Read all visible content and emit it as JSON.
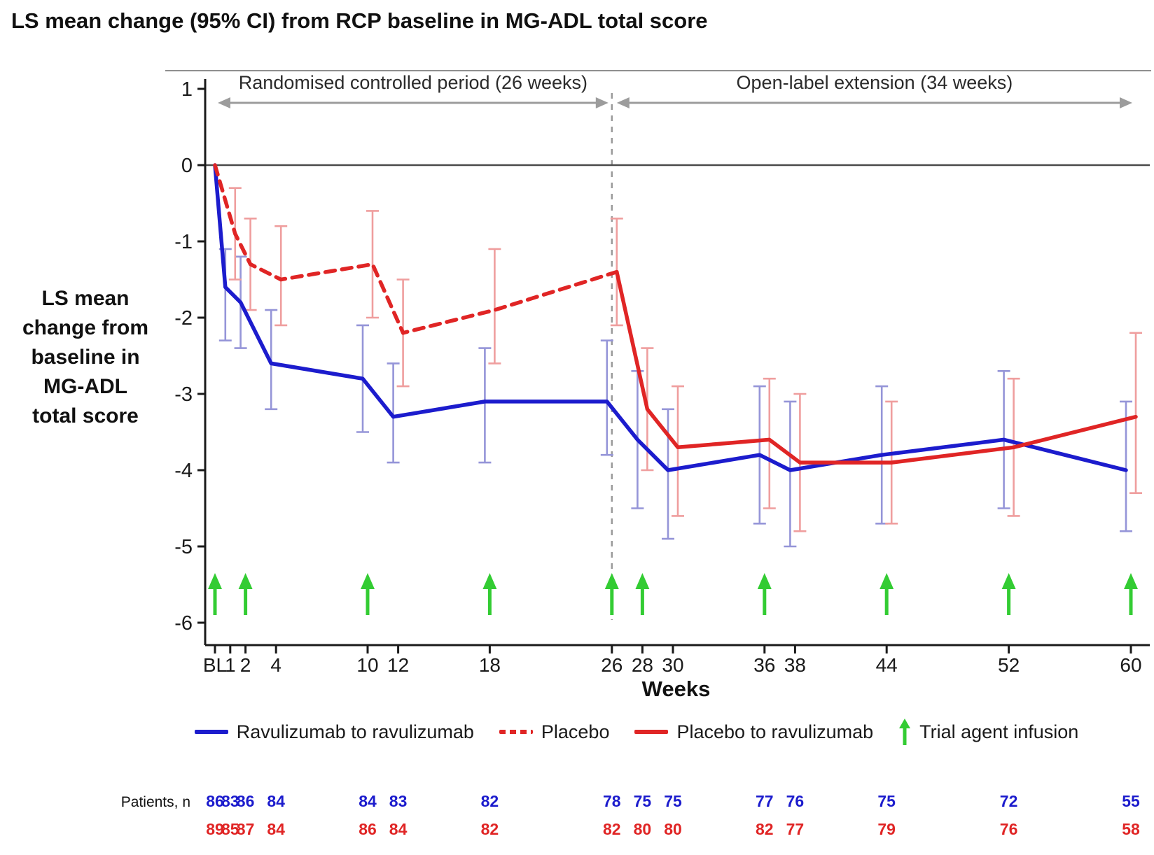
{
  "title": "LS mean change (95% CI) from RCP baseline in MG-ADL total score",
  "colors": {
    "blue": "#1c1ccd",
    "blue_light": "#9595d8",
    "red": "#e02525",
    "red_light": "#ef9e9e",
    "green": "#33cc33",
    "gray": "#9c9c9c",
    "axis": "#1a1a1a",
    "zero_line": "#4a4a4a"
  },
  "chart_data": {
    "type": "line",
    "title": "LS mean change (95% CI) from RCP baseline in MG-ADL total score",
    "xlabel": "Weeks",
    "ylabel": "LS mean change from baseline in MG-ADL total score",
    "ylabel_lines": [
      "LS mean",
      "change from",
      "baseline in",
      "MG-ADL",
      "total score"
    ],
    "ylim": [
      1,
      -6.6
    ],
    "y_ticks": [
      1,
      0,
      -1,
      -2,
      -3,
      -4,
      -5,
      -6
    ],
    "x_tick_labels": [
      "BL",
      "1",
      "2",
      "4",
      "10",
      "12",
      "18",
      "26",
      "28",
      "30",
      "36",
      "38",
      "44",
      "52",
      "60"
    ],
    "x_tick_weeks": [
      0,
      1,
      2,
      4,
      10,
      12,
      18,
      26,
      28,
      30,
      36,
      38,
      44,
      52,
      60
    ],
    "annotations": {
      "rcp_label": "Randomised controlled period (26 weeks)",
      "rcp_from_week": 0,
      "rcp_to_week": 26,
      "ole_label": "Open-label extension (34 weeks)",
      "ole_from_week": 26,
      "ole_to_week": 60,
      "divider_week": 26
    },
    "series": [
      {
        "name": "Ravulizumab to ravulizumab",
        "style": "solid",
        "color_key": "blue",
        "points": [
          {
            "week": 0,
            "value": 0
          },
          {
            "week": 1,
            "value": -1.6,
            "ci": [
              -1.1,
              -2.3
            ]
          },
          {
            "week": 2,
            "value": -1.8,
            "ci": [
              -1.2,
              -2.4
            ]
          },
          {
            "week": 4,
            "value": -2.6,
            "ci": [
              -1.9,
              -3.2
            ]
          },
          {
            "week": 10,
            "value": -2.8,
            "ci": [
              -2.1,
              -3.5
            ]
          },
          {
            "week": 12,
            "value": -3.3,
            "ci": [
              -2.6,
              -3.9
            ]
          },
          {
            "week": 18,
            "value": -3.1,
            "ci": [
              -2.4,
              -3.9
            ]
          },
          {
            "week": 26,
            "value": -3.1,
            "ci": [
              -2.3,
              -3.8
            ]
          },
          {
            "week": 28,
            "value": -3.6,
            "ci": [
              -2.7,
              -4.5
            ]
          },
          {
            "week": 30,
            "value": -4.0,
            "ci": [
              -3.2,
              -4.9
            ]
          },
          {
            "week": 36,
            "value": -3.8,
            "ci": [
              -2.9,
              -4.7
            ]
          },
          {
            "week": 38,
            "value": -4.0,
            "ci": [
              -3.1,
              -5.0
            ]
          },
          {
            "week": 44,
            "value": -3.8,
            "ci": [
              -2.9,
              -4.7
            ]
          },
          {
            "week": 52,
            "value": -3.6,
            "ci": [
              -2.7,
              -4.5
            ]
          },
          {
            "week": 60,
            "value": -4.0,
            "ci": [
              -3.1,
              -4.8
            ]
          }
        ]
      },
      {
        "name": "Placebo",
        "style": "dashed",
        "color_key": "red",
        "points": [
          {
            "week": 0,
            "value": 0
          },
          {
            "week": 1,
            "value": -0.9,
            "ci": [
              -0.3,
              -1.5
            ]
          },
          {
            "week": 2,
            "value": -1.3,
            "ci": [
              -0.7,
              -1.9
            ]
          },
          {
            "week": 4,
            "value": -1.5,
            "ci": [
              -0.8,
              -2.1
            ]
          },
          {
            "week": 10,
            "value": -1.3,
            "ci": [
              -0.6,
              -2.0
            ]
          },
          {
            "week": 12,
            "value": -2.2,
            "ci": [
              -1.5,
              -2.9
            ]
          },
          {
            "week": 18,
            "value": -1.9,
            "ci": [
              -1.1,
              -2.6
            ]
          },
          {
            "week": 26,
            "value": -1.4,
            "ci": [
              -0.7,
              -2.1
            ]
          }
        ]
      },
      {
        "name": "Placebo to ravulizumab",
        "style": "solid",
        "color_key": "red",
        "points": [
          {
            "week": 26,
            "value": -1.4
          },
          {
            "week": 28,
            "value": -3.2,
            "ci": [
              -2.4,
              -4.0
            ]
          },
          {
            "week": 30,
            "value": -3.7,
            "ci": [
              -2.9,
              -4.6
            ]
          },
          {
            "week": 36,
            "value": -3.6,
            "ci": [
              -2.8,
              -4.5
            ]
          },
          {
            "week": 38,
            "value": -3.9,
            "ci": [
              -3.0,
              -4.8
            ]
          },
          {
            "week": 44,
            "value": -3.9,
            "ci": [
              -3.1,
              -4.7
            ]
          },
          {
            "week": 52,
            "value": -3.7,
            "ci": [
              -2.8,
              -4.6
            ]
          },
          {
            "week": 60,
            "value": -3.3,
            "ci": [
              -2.2,
              -4.3
            ]
          }
        ]
      }
    ],
    "infusions": {
      "label": "Trial agent infusion",
      "weeks": [
        0,
        2,
        10,
        18,
        26,
        28,
        36,
        44,
        52,
        60
      ]
    },
    "patients": {
      "label": "Patients, n",
      "rows": [
        {
          "color_key": "blue",
          "counts": [
            86,
            83,
            86,
            84,
            84,
            83,
            82,
            78,
            75,
            75,
            77,
            76,
            75,
            72,
            55
          ]
        },
        {
          "color_key": "red",
          "counts": [
            89,
            85,
            87,
            84,
            86,
            84,
            82,
            82,
            80,
            80,
            82,
            77,
            79,
            76,
            58
          ]
        }
      ]
    }
  },
  "legend": {
    "items": [
      {
        "label": "Ravulizumab to ravulizumab",
        "swatch": "blue-solid-line"
      },
      {
        "label": "Placebo",
        "swatch": "red-dashed-line"
      },
      {
        "label": "Placebo to ravulizumab",
        "swatch": "red-solid-line"
      },
      {
        "label": "Trial agent infusion",
        "swatch": "green-arrow"
      }
    ]
  }
}
